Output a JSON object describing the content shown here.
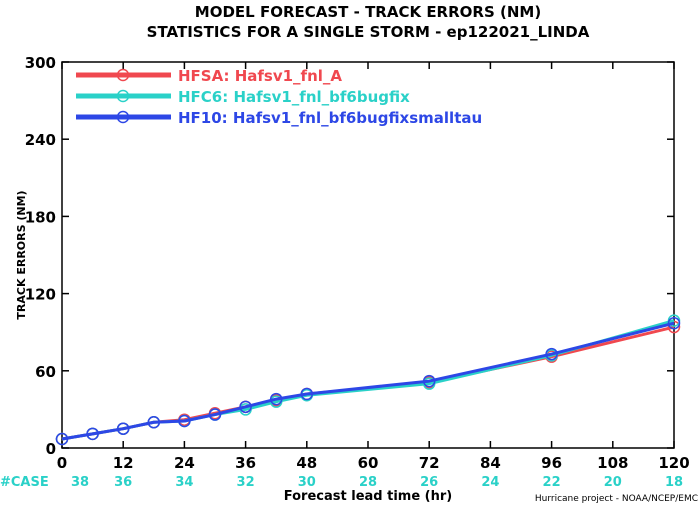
{
  "chart_data": {
    "type": "line",
    "title": "MODEL FORECAST - TRACK ERRORS (NM)",
    "subtitle": "STATISTICS FOR A SINGLE STORM - ep122021_LINDA",
    "xlabel": "Forecast lead time (hr)",
    "ylabel": "TRACK ERRORS (NM)",
    "xlim": [
      0,
      120
    ],
    "ylim": [
      0,
      300
    ],
    "xticks": [
      0,
      12,
      24,
      36,
      48,
      60,
      72,
      84,
      96,
      108,
      120
    ],
    "yticks": [
      0,
      60,
      120,
      180,
      240,
      300
    ],
    "xtick_labels": [
      "0",
      "12",
      "24",
      "36",
      "48",
      "60",
      "72",
      "84",
      "96",
      "108",
      "120"
    ],
    "ytick_labels": [
      "0",
      "60",
      "120",
      "180",
      "240",
      "300"
    ],
    "grid": false,
    "legend_position": "top-left",
    "series": [
      {
        "name": "HFSA: Hafsv1_fnl_A",
        "color": "#f0484f",
        "x": [
          0,
          6,
          12,
          18,
          24,
          30,
          36,
          42,
          48,
          72,
          96,
          120
        ],
        "y": [
          7,
          11,
          15,
          20,
          22,
          27,
          32,
          37,
          42,
          51,
          71,
          94
        ]
      },
      {
        "name": "HFC6: Hafsv1_fnl_bf6bugfix",
        "color": "#2ad1c8",
        "x": [
          0,
          6,
          12,
          18,
          24,
          30,
          36,
          42,
          48,
          72,
          96,
          120
        ],
        "y": [
          7,
          11,
          15,
          20,
          21,
          26,
          30,
          36,
          41,
          50,
          72,
          99
        ]
      },
      {
        "name": "HF10: Hafsv1_fnl_bf6bugfixsmalltau",
        "color": "#2d47e6",
        "x": [
          0,
          6,
          12,
          18,
          24,
          30,
          36,
          42,
          48,
          72,
          96,
          120
        ],
        "y": [
          7,
          11,
          15,
          20,
          21,
          26,
          32,
          38,
          42,
          52,
          73,
          97
        ]
      }
    ],
    "case_counts": {
      "label": "#CASE",
      "color": "#2ad1c8",
      "x": [
        0,
        12,
        24,
        36,
        48,
        60,
        72,
        84,
        96,
        108,
        120
      ],
      "values": [
        "38",
        "36",
        "34",
        "32",
        "30",
        "28",
        "26",
        "24",
        "22",
        "20",
        "18"
      ]
    },
    "footer": "Hurricane project - NOAA/NCEP/EMC"
  }
}
